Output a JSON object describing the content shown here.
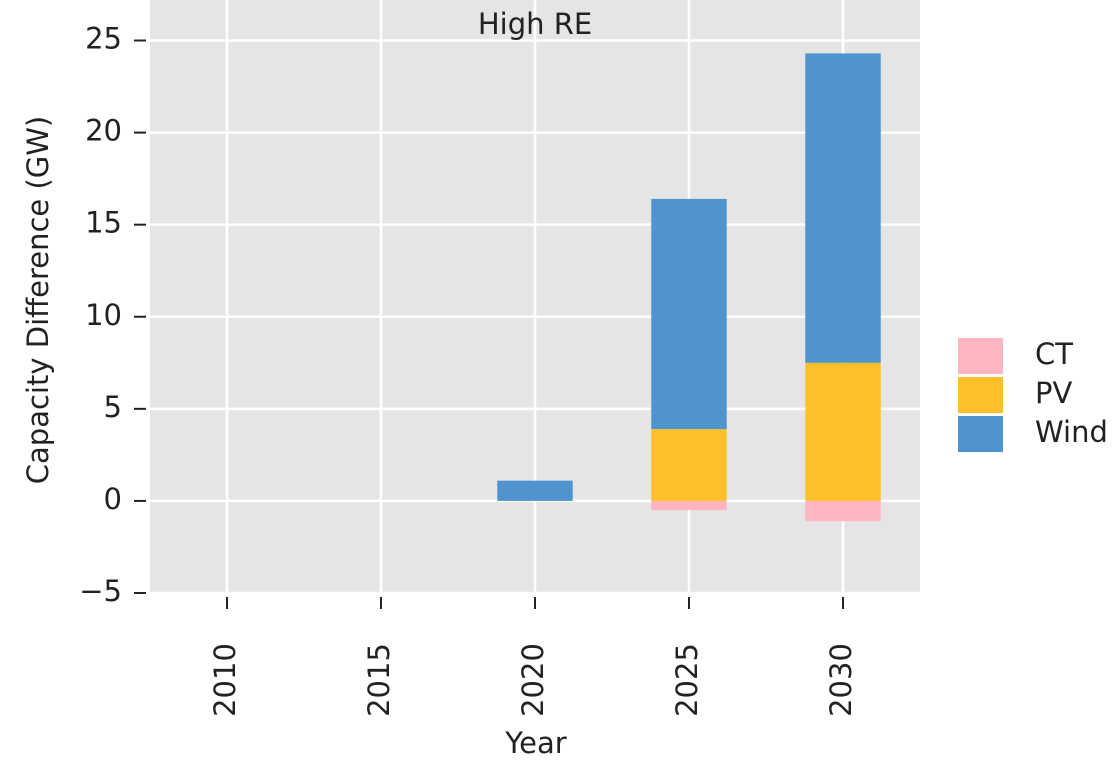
{
  "chart_data": {
    "type": "bar",
    "stacked": true,
    "title": "High RE",
    "x_label": "Year",
    "y_label": "Capacity Difference (GW)",
    "categories": [
      "2010",
      "2015",
      "2020",
      "2025",
      "2030"
    ],
    "series": [
      {
        "name": "CT",
        "color": "#ffb6c1",
        "values": [
          0,
          0,
          0,
          -0.5,
          -1.1
        ]
      },
      {
        "name": "PV",
        "color": "#fdbf2a",
        "values": [
          0,
          0,
          0,
          3.9,
          7.5
        ]
      },
      {
        "name": "Wind",
        "color": "#4f93cf",
        "values": [
          0,
          0,
          1.1,
          12.5,
          16.8
        ]
      }
    ],
    "ylim": [
      -5,
      27.2
    ],
    "yticks": [
      {
        "value": -5,
        "label": "−5"
      },
      0,
      5,
      10,
      15,
      20,
      25
    ],
    "grid": true,
    "legend": "right"
  }
}
